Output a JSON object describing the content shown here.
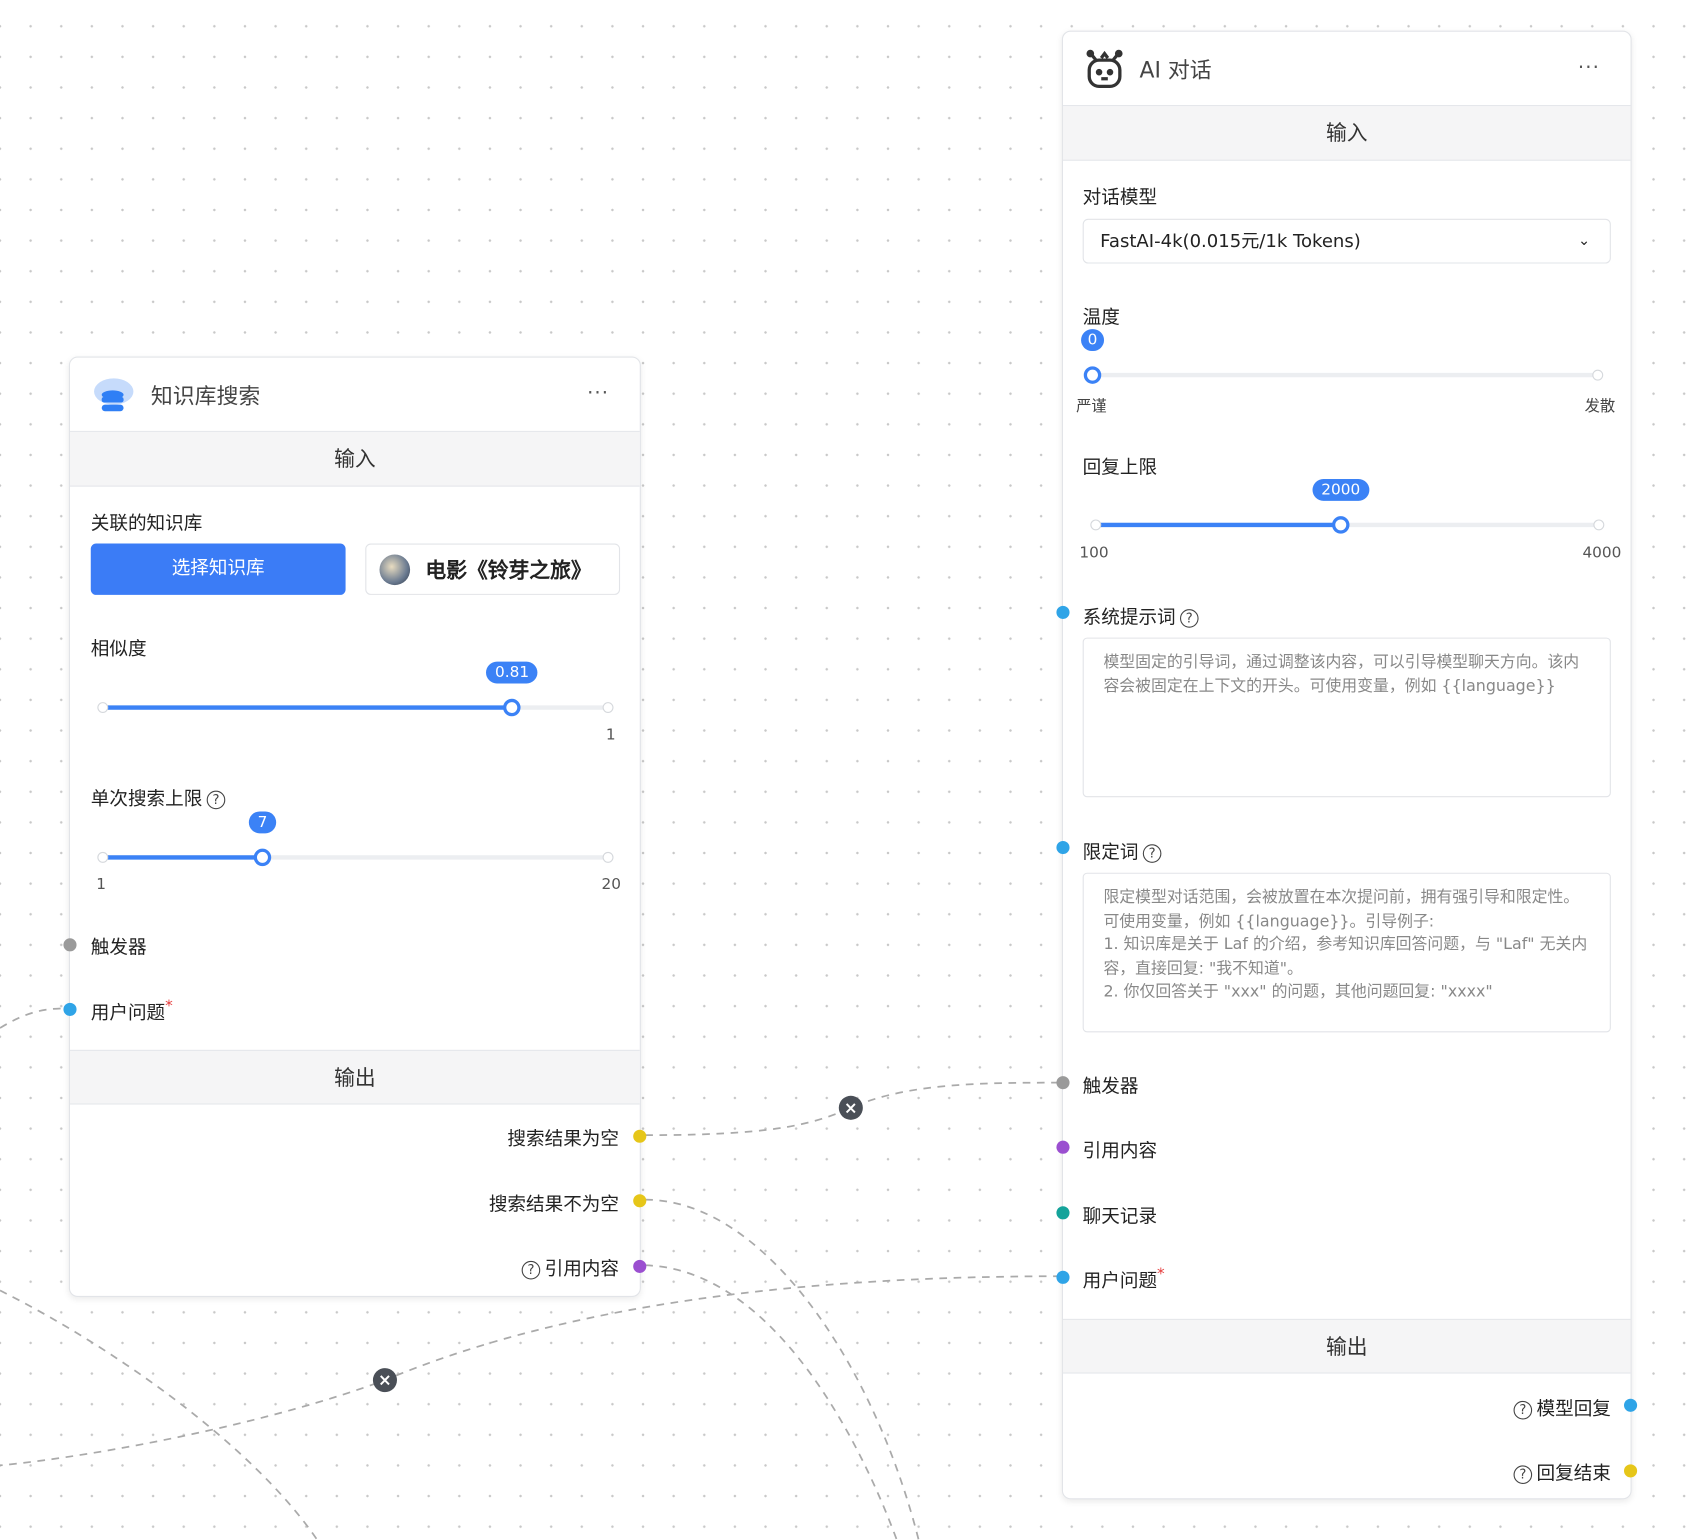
{
  "colors": {
    "accent": "#3b82f6",
    "port_blue": "#2fa4e7",
    "port_gray": "#9a9a9a",
    "port_yellow": "#e6c619",
    "port_purple": "#9b4fd0",
    "port_teal": "#14a39a"
  },
  "kb_node": {
    "title": "知识库搜索",
    "icon": "database-cloud-icon",
    "more": "···",
    "input_section": "输入",
    "linked_kb_label": "关联的知识库",
    "select_kb_button": "选择知识库",
    "selected_kb": "电影《铃芽之旅》",
    "similarity": {
      "label": "相似度",
      "value": 0.81,
      "value_label": "0.81",
      "min": 0,
      "max": 1,
      "max_label": "1"
    },
    "search_limit": {
      "label": "单次搜索上限",
      "value": 7,
      "value_label": "7",
      "min": 1,
      "max": 20,
      "min_label": "1",
      "max_label": "20"
    },
    "trigger_label": "触发器",
    "user_question_label": "用户问题",
    "required_mark": "*",
    "output_section": "输出",
    "outputs": [
      "搜索结果为空",
      "搜索结果不为空",
      "引用内容"
    ]
  },
  "ai_node": {
    "title": "AI 对话",
    "icon": "robot-icon",
    "more": "···",
    "input_section": "输入",
    "model_label": "对话模型",
    "model_value": "FastAI-4k(0.015元/1k Tokens)",
    "temperature": {
      "label": "温度",
      "value": 0,
      "value_label": "0",
      "min_label": "严谨",
      "max_label": "发散"
    },
    "max_tokens": {
      "label": "回复上限",
      "value": 2000,
      "value_label": "2000",
      "min": 100,
      "max": 4000,
      "min_label": "100",
      "max_label": "4000"
    },
    "system_prompt_label": "系统提示词",
    "system_prompt_placeholder": "模型固定的引导词，通过调整该内容，可以引导模型聊天方向。该内容会被固定在上下文的开头。可使用变量，例如 {{language}}",
    "limit_prompt_label": "限定词",
    "limit_prompt_placeholder": "限定模型对话范围，会被放置在本次提问前，拥有强引导和限定性。可使用变量，例如 {{language}}。引导例子:\n1. 知识库是关于 Laf 的介绍，参考知识库回答问题，与 \"Laf\" 无关内容，直接回复: \"我不知道\"。\n2. 你仅回答关于 \"xxx\" 的问题，其他问题回复: \"xxxx\"",
    "inputs": [
      "触发器",
      "引用内容",
      "聊天记录",
      "用户问题"
    ],
    "required_mark": "*",
    "output_section": "输出",
    "outputs": [
      "模型回复",
      "回复结束"
    ]
  },
  "help_glyph": "?",
  "delete_glyph": "×"
}
